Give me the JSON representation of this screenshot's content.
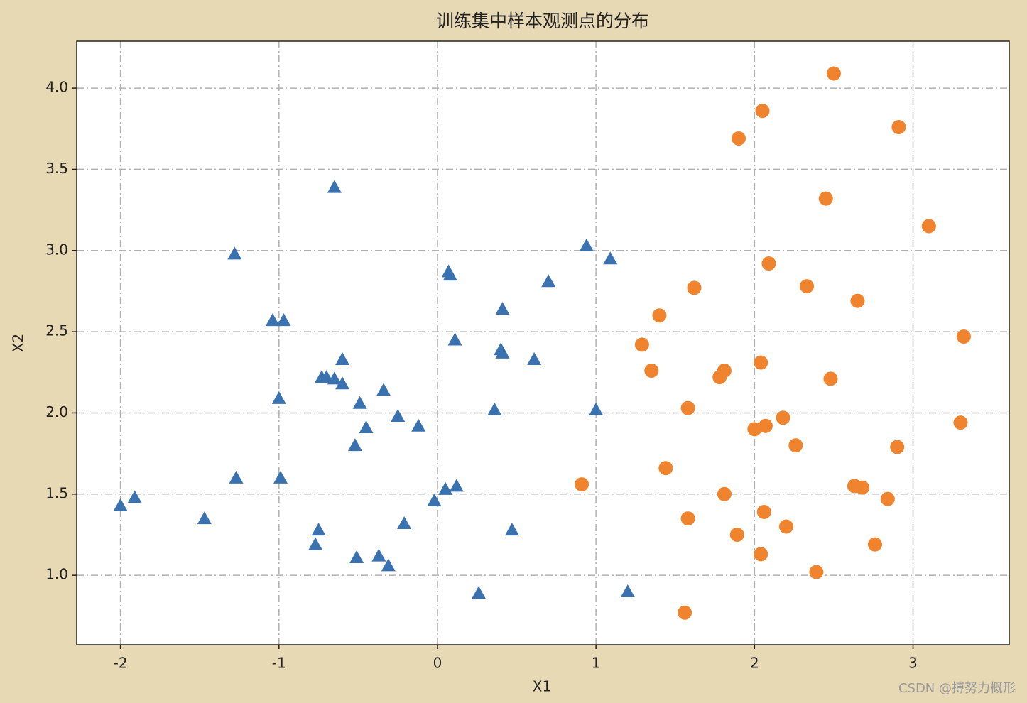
{
  "chart_data": {
    "type": "scatter",
    "title": "训练集中样本观测点的分布",
    "x_label": "X1",
    "y_label": "X2",
    "watermark": "CSDN @搏努力概形",
    "xlim": [
      -2.276,
      3.607
    ],
    "ylim": [
      0.572,
      4.289
    ],
    "xticks": [
      -2,
      -1,
      0,
      1,
      2,
      3
    ],
    "yticks": [
      {
        "value": 1,
        "label": "1.0"
      },
      1.5,
      {
        "value": 2,
        "label": "2.0"
      },
      2.5,
      {
        "value": 3,
        "label": "3.0"
      },
      3.5,
      {
        "value": 4,
        "label": "4.0"
      }
    ],
    "grid": true,
    "series": [
      {
        "color": "#3a72b0",
        "marker": "triangle",
        "x": [
          -2.0,
          -1.91,
          -1.47,
          -1.28,
          -1.27,
          -1.04,
          -0.97,
          -1.0,
          -0.99,
          -0.77,
          -0.75,
          -0.65,
          -0.73,
          -0.7,
          -0.65,
          -0.6,
          -0.6,
          -0.49,
          -0.45,
          -0.52,
          -0.51,
          -0.37,
          -0.34,
          -0.31,
          -0.25,
          -0.21,
          -0.12,
          -0.02,
          0.05,
          0.12,
          0.07,
          0.08,
          0.11,
          0.26,
          0.36,
          0.4,
          0.41,
          0.41,
          0.47,
          0.61,
          0.7,
          0.94,
          1.0,
          1.09,
          1.2
        ],
        "values": [
          1.43,
          1.48,
          1.35,
          2.98,
          1.6,
          2.57,
          2.57,
          2.09,
          1.6,
          1.19,
          1.28,
          3.39,
          2.22,
          2.22,
          2.21,
          2.33,
          2.18,
          2.06,
          1.91,
          1.8,
          1.11,
          1.12,
          2.14,
          1.06,
          1.98,
          1.32,
          1.92,
          1.46,
          1.53,
          1.55,
          2.87,
          2.85,
          2.45,
          0.89,
          2.02,
          2.39,
          2.37,
          2.64,
          1.28,
          2.33,
          2.81,
          3.03,
          2.02,
          2.95,
          0.9
        ]
      },
      {
        "color": "#f0842e",
        "marker": "circle",
        "x": [
          0.91,
          1.29,
          1.35,
          1.4,
          1.44,
          1.58,
          1.58,
          1.56,
          1.62,
          1.78,
          1.81,
          1.81,
          1.89,
          1.9,
          2.0,
          2.04,
          2.04,
          2.05,
          2.06,
          2.07,
          2.09,
          2.18,
          2.2,
          2.26,
          2.33,
          2.39,
          2.45,
          2.48,
          2.5,
          2.63,
          2.65,
          2.68,
          2.76,
          2.84,
          2.9,
          2.91,
          3.1,
          3.3,
          3.32
        ],
        "values": [
          1.56,
          2.42,
          2.26,
          2.6,
          1.66,
          2.03,
          1.35,
          0.77,
          2.77,
          2.22,
          2.26,
          1.5,
          1.25,
          3.69,
          1.9,
          2.31,
          1.13,
          3.86,
          1.39,
          1.92,
          2.92,
          1.97,
          1.3,
          1.8,
          2.78,
          1.02,
          3.32,
          2.21,
          4.09,
          1.55,
          2.69,
          1.54,
          1.19,
          1.47,
          1.79,
          3.76,
          3.15,
          1.94,
          2.47
        ]
      }
    ]
  }
}
